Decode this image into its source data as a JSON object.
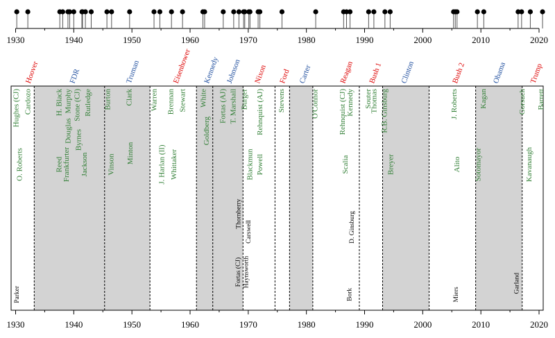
{
  "chart_data": {
    "type": "timeline",
    "title": "",
    "x_axis": {
      "label": "",
      "range": [
        1930,
        2020
      ],
      "ticks": [
        1930,
        1940,
        1950,
        1960,
        1970,
        1980,
        1990,
        2000,
        2010,
        2020
      ],
      "tick_labels": [
        "1930",
        "1940",
        "1950",
        "1960",
        "1970",
        "1980",
        "1990",
        "2000",
        "2010",
        "2020"
      ]
    },
    "colors": {
      "republican": "#dd0000",
      "democrat": "#1f4e9e",
      "justice": "#2e7d32",
      "nominee": "#000000",
      "shade": "#d3d3d3"
    },
    "appointment_events": [
      1930.2,
      1932.1,
      1937.6,
      1938.1,
      1939.0,
      1939.3,
      1940.0,
      1941.4,
      1941.5,
      1942.0,
      1943.0,
      1945.7,
      1946.5,
      1949.6,
      1953.8,
      1954.8,
      1956.8,
      1958.7,
      1962.2,
      1962.5,
      1965.7,
      1967.5,
      1968.4,
      1969.2,
      1969.4,
      1970.1,
      1970.3,
      1971.7,
      1972.0,
      1975.8,
      1981.6,
      1986.4,
      1986.9,
      1987.5,
      1990.7,
      1991.6,
      1993.5,
      1994.4,
      2005.3,
      2005.6,
      2005.9,
      2009.4,
      2010.5,
      2016.4,
      2017.0,
      2018.5,
      2020.6
    ],
    "presidencies": [
      {
        "name": "Hoover",
        "party": "R",
        "start": 1929.2,
        "end": 1933.2
      },
      {
        "name": "FDR",
        "party": "D",
        "start": 1933.2,
        "end": 1945.3
      },
      {
        "name": "Truman",
        "party": "D",
        "start": 1945.3,
        "end": 1953.1
      },
      {
        "name": "Eisenhower",
        "party": "R",
        "start": 1953.1,
        "end": 1961.1
      },
      {
        "name": "Kennedy",
        "party": "D",
        "start": 1961.1,
        "end": 1963.9
      },
      {
        "name": "Johnson",
        "party": "D",
        "start": 1963.9,
        "end": 1969.1
      },
      {
        "name": "Nixon",
        "party": "R",
        "start": 1969.1,
        "end": 1974.6
      },
      {
        "name": "Ford",
        "party": "R",
        "start": 1974.6,
        "end": 1977.1
      },
      {
        "name": "Carter",
        "party": "D",
        "start": 1977.1,
        "end": 1981.1
      },
      {
        "name": "Reagan",
        "party": "R",
        "start": 1981.1,
        "end": 1989.1
      },
      {
        "name": "Bush 1",
        "party": "R",
        "start": 1989.1,
        "end": 1993.1
      },
      {
        "name": "Clinton",
        "party": "D",
        "start": 1993.1,
        "end": 2001.1
      },
      {
        "name": "Bush 2",
        "party": "R",
        "start": 2001.1,
        "end": 2009.1
      },
      {
        "name": "Obama",
        "party": "D",
        "start": 2009.1,
        "end": 2017.1
      },
      {
        "name": "Trump",
        "party": "R",
        "start": 2017.1,
        "end": 2021.1
      }
    ],
    "president_labels": [
      {
        "name": "Hoover",
        "x": 1932.2
      },
      {
        "name": "FDR",
        "x": 1939.8
      },
      {
        "name": "Truman",
        "x": 1949.5
      },
      {
        "name": "Eisenhower",
        "x": 1957.6
      },
      {
        "name": "Kennedy",
        "x": 1962.9
      },
      {
        "name": "Johnson",
        "x": 1966.8
      },
      {
        "name": "Nixon",
        "x": 1971.6
      },
      {
        "name": "Ford",
        "x": 1975.9
      },
      {
        "name": "Carter",
        "x": 1979.3
      },
      {
        "name": "Reagan",
        "x": 1986.3
      },
      {
        "name": "Bush 1",
        "x": 1991.3
      },
      {
        "name": "Clinton",
        "x": 1996.8
      },
      {
        "name": "Bush 2",
        "x": 2005.6
      },
      {
        "name": "Obama",
        "x": 2012.6
      },
      {
        "name": "Trump",
        "x": 2019.0
      }
    ],
    "justices": [
      {
        "name": "Hughes (CJ)",
        "x": 1930.2,
        "anchor": "top"
      },
      {
        "name": "Cardozo",
        "x": 1932.2,
        "anchor": "top"
      },
      {
        "name": "O. Roberts",
        "x": 1930.8,
        "anchor": "mid",
        "y": 0.35
      },
      {
        "name": "H. Black",
        "x": 1937.6,
        "anchor": "top"
      },
      {
        "name": "Murphy",
        "x": 1939.1,
        "anchor": "top"
      },
      {
        "name": "Stone (CJ)",
        "x": 1940.7,
        "anchor": "top"
      },
      {
        "name": "Rutledge",
        "x": 1942.5,
        "anchor": "top"
      },
      {
        "name": "Douglas",
        "x": 1939.1,
        "anchor": "mid",
        "y": 0.2
      },
      {
        "name": "Byrnes",
        "x": 1940.9,
        "anchor": "mid",
        "y": 0.24
      },
      {
        "name": "Frankfurter",
        "x": 1938.8,
        "anchor": "mid",
        "y": 0.35
      },
      {
        "name": "Reed",
        "x": 1937.6,
        "anchor": "mid",
        "y": 0.35
      },
      {
        "name": "Jackson",
        "x": 1941.9,
        "anchor": "mid",
        "y": 0.35
      },
      {
        "name": "Burton",
        "x": 1945.9,
        "anchor": "top"
      },
      {
        "name": "Clark",
        "x": 1949.6,
        "anchor": "top"
      },
      {
        "name": "Minton",
        "x": 1949.8,
        "anchor": "mid",
        "y": 0.3
      },
      {
        "name": "Vinson",
        "x": 1946.5,
        "anchor": "mid",
        "y": 0.35
      },
      {
        "name": "Warren",
        "x": 1953.9,
        "anchor": "top"
      },
      {
        "name": "Brennan",
        "x": 1956.8,
        "anchor": "top"
      },
      {
        "name": "Stewart",
        "x": 1958.8,
        "anchor": "top"
      },
      {
        "name": "J. Harlan (II)",
        "x": 1955.2,
        "anchor": "mid",
        "y": 0.35
      },
      {
        "name": "Whittaker",
        "x": 1957.3,
        "anchor": "mid",
        "y": 0.35
      },
      {
        "name": "White",
        "x": 1962.4,
        "anchor": "top"
      },
      {
        "name": "Goldberg",
        "x": 1962.9,
        "anchor": "mid",
        "y": 0.2
      },
      {
        "name": "Fortas (AJ)",
        "x": 1965.7,
        "anchor": "top"
      },
      {
        "name": "T. Marshall",
        "x": 1967.5,
        "anchor": "top"
      },
      {
        "name": "Burger",
        "x": 1969.4,
        "anchor": "top"
      },
      {
        "name": "Rehnquist (AJ)",
        "x": 1972.1,
        "anchor": "top"
      },
      {
        "name": "Blackmun",
        "x": 1970.4,
        "anchor": "mid",
        "y": 0.35
      },
      {
        "name": "Powell",
        "x": 1972.1,
        "anchor": "mid",
        "y": 0.35
      },
      {
        "name": "Stevens",
        "x": 1975.8,
        "anchor": "top"
      },
      {
        "name": "O'Connor",
        "x": 1981.6,
        "anchor": "top"
      },
      {
        "name": "Rehnquist (CJ)",
        "x": 1986.3,
        "anchor": "top"
      },
      {
        "name": "Kennedy",
        "x": 1987.6,
        "anchor": "top"
      },
      {
        "name": "Scalia",
        "x": 1986.8,
        "anchor": "mid",
        "y": 0.35
      },
      {
        "name": "Souter",
        "x": 1990.7,
        "anchor": "top"
      },
      {
        "name": "Thomas",
        "x": 1991.7,
        "anchor": "top"
      },
      {
        "name": "R.B. Ginsburg",
        "x": 1993.5,
        "anchor": "top"
      },
      {
        "name": "Breyer",
        "x": 1994.6,
        "anchor": "mid",
        "y": 0.35
      },
      {
        "name": "J. Roberts",
        "x": 2005.5,
        "anchor": "top"
      },
      {
        "name": "Alito",
        "x": 2006.0,
        "anchor": "mid",
        "y": 0.35
      },
      {
        "name": "Kagan",
        "x": 2010.5,
        "anchor": "top"
      },
      {
        "name": "Sotomayor",
        "x": 2009.6,
        "anchor": "mid",
        "y": 0.35
      },
      {
        "name": "Gorsuch",
        "x": 2017.2,
        "anchor": "top"
      },
      {
        "name": "Barrett",
        "x": 2020.4,
        "anchor": "top"
      },
      {
        "name": "Kavanaugh",
        "x": 2018.4,
        "anchor": "mid",
        "y": 0.35
      }
    ],
    "failed_nominees": [
      {
        "name": "Parker",
        "x": 1930.3,
        "y": 0.93
      },
      {
        "name": "Fortas (CJ)",
        "x": 1968.3,
        "y": 0.83
      },
      {
        "name": "Haynsworth",
        "x": 1969.7,
        "y": 0.83
      },
      {
        "name": "Thornberry",
        "x": 1968.4,
        "y": 0.57
      },
      {
        "name": "Carswell",
        "x": 1970.1,
        "y": 0.65
      },
      {
        "name": "Bork",
        "x": 1987.5,
        "y": 0.93
      },
      {
        "name": "D. Ginsburg",
        "x": 1987.9,
        "y": 0.63
      },
      {
        "name": "Miers",
        "x": 2005.8,
        "y": 0.93
      },
      {
        "name": "Garland",
        "x": 2016.2,
        "y": 0.88
      }
    ]
  }
}
